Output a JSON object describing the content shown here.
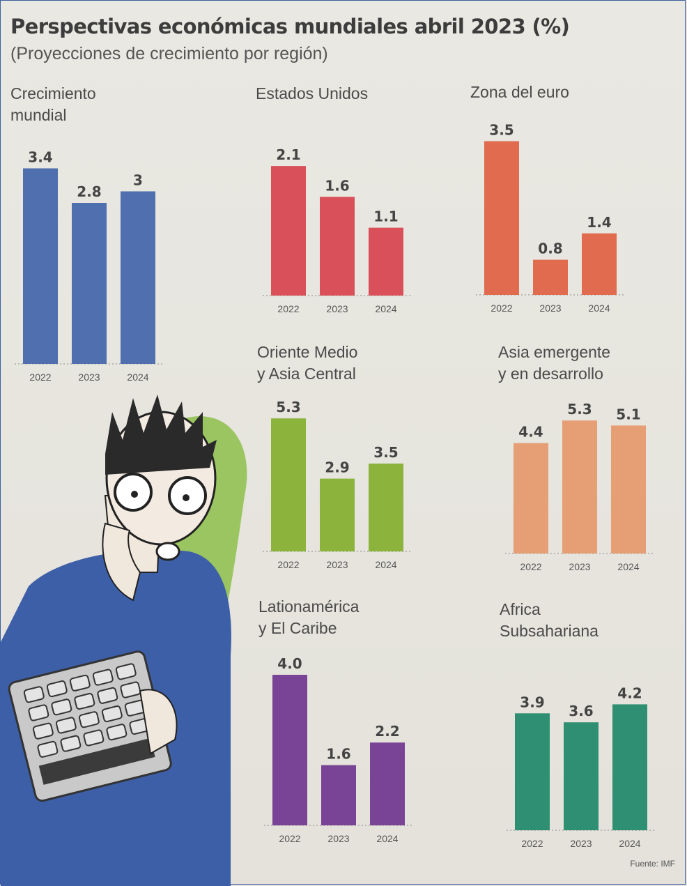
{
  "title": "Perspectivas económicas mundiales abril 2023 (%)",
  "subtitle": "(Proyecciones de crecimiento por región)",
  "source": "Fuente: IMF",
  "chart_data": [
    {
      "type": "bar",
      "title": "Crecimiento\nmundial",
      "categories": [
        "2022",
        "2023",
        "2024"
      ],
      "values": [
        3.4,
        2.8,
        3
      ],
      "value_labels": [
        "3.4",
        "2.8",
        "3"
      ],
      "color": "#4f6fae"
    },
    {
      "type": "bar",
      "title": "Estados Unidos",
      "categories": [
        "2022",
        "2023",
        "2024"
      ],
      "values": [
        2.1,
        1.6,
        1.1
      ],
      "value_labels": [
        "2.1",
        "1.6",
        "1.1"
      ],
      "color": "#d9505a"
    },
    {
      "type": "bar",
      "title": "Zona del euro",
      "categories": [
        "2022",
        "2023",
        "2024"
      ],
      "values": [
        3.5,
        0.8,
        1.4
      ],
      "value_labels": [
        "3.5",
        "0.8",
        "1.4"
      ],
      "color": "#e06b4f"
    },
    {
      "type": "bar",
      "title": "Oriente Medio\ny Asia Central",
      "categories": [
        "2022",
        "2023",
        "2024"
      ],
      "values": [
        5.3,
        2.9,
        3.5
      ],
      "value_labels": [
        "5.3",
        "2.9",
        "3.5"
      ],
      "color": "#8cb43c"
    },
    {
      "type": "bar",
      "title": "Asia emergente\ny en desarrollo",
      "categories": [
        "2022",
        "2023",
        "2024"
      ],
      "values": [
        4.4,
        5.3,
        5.1
      ],
      "value_labels": [
        "4.4",
        "5.3",
        "5.1"
      ],
      "color": "#e69f74"
    },
    {
      "type": "bar",
      "title": "Lationamérica\ny El Caribe",
      "categories": [
        "2022",
        "2023",
        "2024"
      ],
      "values": [
        4.0,
        1.6,
        2.2
      ],
      "value_labels": [
        "4.0",
        "1.6",
        "2.2"
      ],
      "color": "#7a4496"
    },
    {
      "type": "bar",
      "title": "Africa\nSubsahariana",
      "categories": [
        "2022",
        "2023",
        "2024"
      ],
      "values": [
        3.9,
        3.6,
        4.2
      ],
      "value_labels": [
        "3.9",
        "3.6",
        "4.2"
      ],
      "color": "#2f8f72"
    }
  ]
}
